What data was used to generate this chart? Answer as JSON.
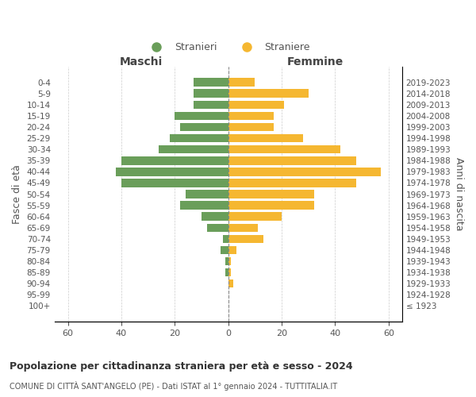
{
  "age_groups": [
    "100+",
    "95-99",
    "90-94",
    "85-89",
    "80-84",
    "75-79",
    "70-74",
    "65-69",
    "60-64",
    "55-59",
    "50-54",
    "45-49",
    "40-44",
    "35-39",
    "30-34",
    "25-29",
    "20-24",
    "15-19",
    "10-14",
    "5-9",
    "0-4"
  ],
  "birth_years": [
    "≤ 1923",
    "1924-1928",
    "1929-1933",
    "1934-1938",
    "1939-1943",
    "1944-1948",
    "1949-1953",
    "1954-1958",
    "1959-1963",
    "1964-1968",
    "1969-1973",
    "1974-1978",
    "1979-1983",
    "1984-1988",
    "1989-1993",
    "1994-1998",
    "1999-2003",
    "2004-2008",
    "2009-2013",
    "2014-2018",
    "2019-2023"
  ],
  "males": [
    0,
    0,
    0,
    1,
    1,
    3,
    2,
    8,
    10,
    18,
    16,
    40,
    42,
    40,
    26,
    22,
    18,
    20,
    13,
    13,
    13
  ],
  "females": [
    0,
    0,
    2,
    1,
    1,
    3,
    13,
    11,
    20,
    32,
    32,
    48,
    57,
    48,
    42,
    28,
    17,
    17,
    21,
    30,
    10
  ],
  "male_color": "#6a9e5a",
  "female_color": "#f5b731",
  "bar_height": 0.75,
  "xlim": 65,
  "title": "Popolazione per cittadinanza straniera per età e sesso - 2024",
  "subtitle": "COMUNE DI CITTÀ SANT'ANGELO (PE) - Dati ISTAT al 1° gennaio 2024 - TUTTITALIA.IT",
  "ylabel_left": "Fasce di età",
  "ylabel_right": "Anni di nascita",
  "header_left": "Maschi",
  "header_right": "Femmine",
  "legend_male": "Stranieri",
  "legend_female": "Straniere",
  "background_color": "#ffffff",
  "grid_color": "#cccccc",
  "label_color": "#555555"
}
